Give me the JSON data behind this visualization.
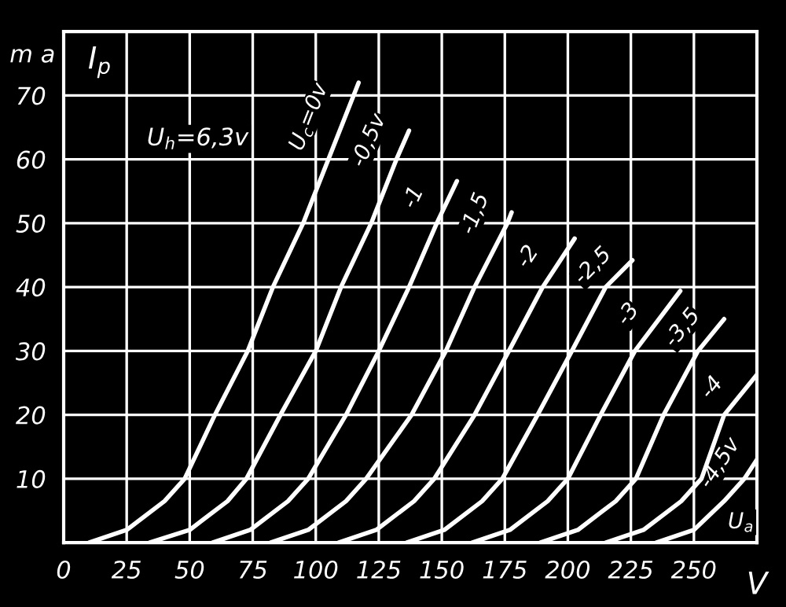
{
  "chart_data": {
    "type": "line",
    "xlabel": "V",
    "ylabel": "m a",
    "annotations": [
      "I$_{p}$",
      "U$_{h}$=6,3v",
      "U$_{a}$"
    ],
    "xlim": [
      0,
      275
    ],
    "ylim": [
      0,
      80
    ],
    "xticks": [
      0,
      25,
      50,
      75,
      100,
      125,
      150,
      175,
      200,
      225,
      250
    ],
    "yticks": [
      10,
      20,
      30,
      40,
      50,
      60,
      70
    ],
    "grid": true,
    "marker": "none",
    "line_style": "solid",
    "series": [
      {
        "name": "U$_{c}$=0v",
        "color": "#ffffff",
        "x": [
          10,
          25,
          40,
          48,
          60,
          73,
          83,
          95,
          105,
          117
        ],
        "values": [
          0,
          2,
          6.5,
          10,
          20,
          30,
          40,
          50,
          60,
          72
        ]
      },
      {
        "name": "-0,5v",
        "color": "#ffffff",
        "x": [
          34,
          50,
          65,
          72.5,
          86,
          100,
          110,
          122,
          132,
          137
        ],
        "values": [
          0,
          2,
          6.5,
          10,
          20,
          30,
          40,
          50,
          60,
          64.5
        ]
      },
      {
        "name": "-1",
        "color": "#ffffff",
        "x": [
          59,
          74,
          89,
          97,
          112,
          125,
          137,
          148,
          156
        ],
        "values": [
          0,
          2,
          6.5,
          10,
          20,
          30,
          40,
          50,
          56.6
        ]
      },
      {
        "name": "-1,5",
        "color": "#ffffff",
        "x": [
          82,
          97,
          112,
          120,
          138,
          151.6,
          163,
          176,
          177.7
        ],
        "values": [
          0,
          2,
          6.5,
          10,
          20,
          30,
          40,
          50,
          51.7
        ]
      },
      {
        "name": "-2",
        "color": "#ffffff",
        "x": [
          109,
          124,
          139,
          147,
          163,
          176.6,
          190,
          202.7
        ],
        "values": [
          0,
          2,
          6.5,
          10,
          20,
          30,
          40,
          47.6
        ]
      },
      {
        "name": "-2,5",
        "color": "#ffffff",
        "x": [
          136,
          151,
          166,
          174,
          188,
          201.6,
          215,
          225.6
        ],
        "values": [
          0,
          2,
          6.5,
          10,
          20,
          30,
          40,
          44.2
        ]
      },
      {
        "name": "-3",
        "color": "#ffffff",
        "x": [
          162,
          177,
          192,
          200,
          213,
          226.6,
          244.6
        ],
        "values": [
          0,
          2,
          6.5,
          10,
          20,
          30,
          39.4
        ]
      },
      {
        "name": "-3,5",
        "color": "#ffffff",
        "x": [
          189,
          204,
          219,
          227,
          238,
          251.6,
          262
        ],
        "values": [
          0,
          2,
          6.5,
          10,
          20,
          30,
          35
        ]
      },
      {
        "name": "-4",
        "color": "#ffffff",
        "x": [
          215,
          230,
          245,
          253,
          262,
          275
        ],
        "values": [
          0,
          2,
          6.5,
          10,
          20,
          26.3
        ]
      },
      {
        "name": "-4,5v",
        "color": "#ffffff",
        "x": [
          235,
          250,
          262,
          270,
          275
        ],
        "values": [
          0,
          2,
          6.5,
          10,
          13
        ]
      }
    ]
  }
}
